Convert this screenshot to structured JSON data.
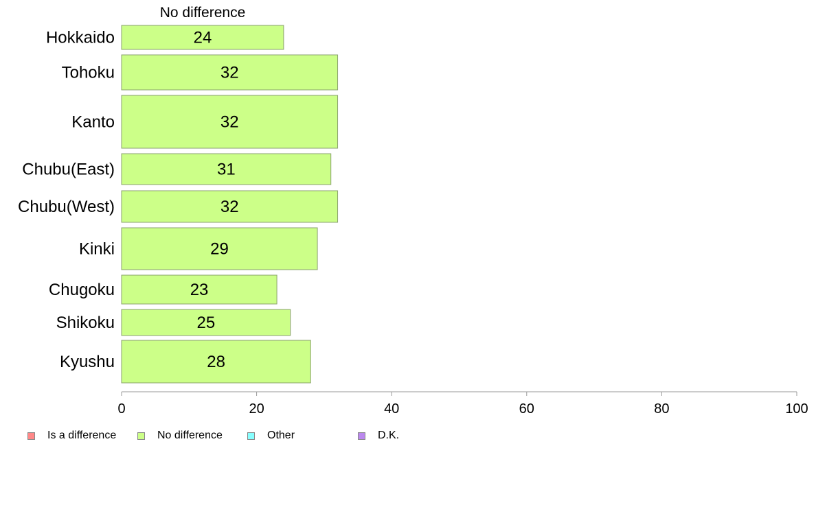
{
  "chart_data": {
    "type": "bar",
    "orientation": "horizontal",
    "series_title": "No difference",
    "categories": [
      "Hokkaido",
      "Tohoku",
      "Kanto",
      "Chubu(East)",
      "Chubu(West)",
      "Kinki",
      "Chugoku",
      "Shikoku",
      "Kyushu"
    ],
    "series": [
      {
        "name": "No difference",
        "values": [
          24,
          32,
          32,
          31,
          32,
          29,
          23,
          25,
          28
        ]
      }
    ],
    "value_labels": [
      "24",
      "32",
      "32",
      "31",
      "32",
      "29",
      "23",
      "25",
      "28"
    ],
    "xlim": [
      0,
      100
    ],
    "xticks": [
      "0",
      "20",
      "40",
      "60",
      "80",
      "100"
    ],
    "xlabel": "",
    "ylabel": "",
    "grid": false,
    "legend_position": "bottom",
    "bar_color": "#ccff88"
  },
  "legend": {
    "items": [
      {
        "label": "Is a difference",
        "color": "#ff8888"
      },
      {
        "label": "No difference",
        "color": "#ccff88"
      },
      {
        "label": "Other",
        "color": "#88ffff"
      },
      {
        "label": "D.K.",
        "color": "#bb88ee"
      }
    ]
  }
}
